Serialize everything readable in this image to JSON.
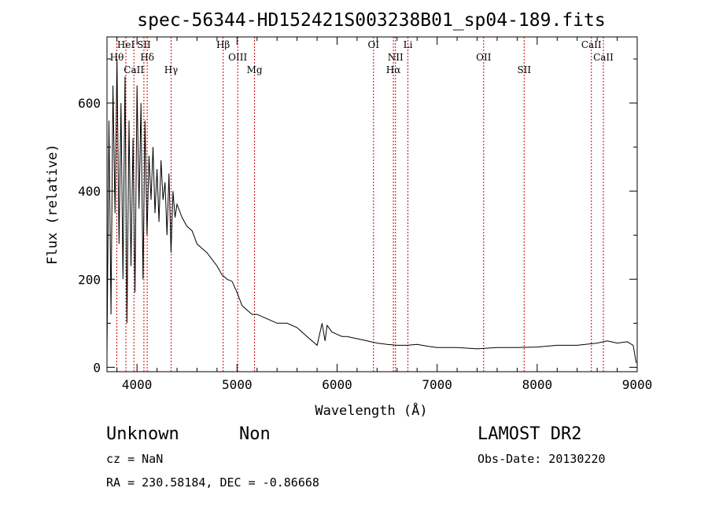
{
  "chart_data": {
    "type": "line",
    "title": "spec-56344-HD152421S003238B01_sp04-189.fits",
    "xlabel": "Wavelength (Å)",
    "ylabel": "Flux (relative)",
    "xlim": [
      3700,
      9000
    ],
    "ylim": [
      -10,
      750
    ],
    "x_ticks": [
      4000,
      5000,
      6000,
      7000,
      8000,
      9000
    ],
    "y_ticks": [
      0,
      200,
      400,
      600
    ],
    "grid": false,
    "series": [
      {
        "x": [
          3700,
          3720,
          3740,
          3760,
          3780,
          3800,
          3820,
          3840,
          3860,
          3880,
          3900,
          3920,
          3940,
          3960,
          3980,
          4000,
          4020,
          4040,
          4060,
          4080,
          4100,
          4120,
          4140,
          4160,
          4180,
          4200,
          4220,
          4240,
          4260,
          4280,
          4300,
          4320,
          4340,
          4360,
          4380,
          4400,
          4450,
          4500,
          4550,
          4600,
          4650,
          4700,
          4750,
          4800,
          4850,
          4900,
          4950,
          5000,
          5050,
          5100,
          5150,
          5200,
          5300,
          5400,
          5500,
          5600,
          5700,
          5800,
          5850,
          5880,
          5900,
          5950,
          6000,
          6050,
          6100,
          6200,
          6300,
          6400,
          6500,
          6600,
          6700,
          6800,
          6900,
          7000,
          7200,
          7400,
          7600,
          7800,
          8000,
          8200,
          8400,
          8600,
          8700,
          8800,
          8900,
          8960,
          8990
        ],
        "y": [
          30,
          560,
          120,
          640,
          350,
          700,
          280,
          600,
          200,
          660,
          100,
          560,
          230,
          520,
          170,
          640,
          360,
          600,
          200,
          560,
          300,
          480,
          380,
          500,
          350,
          450,
          330,
          470,
          380,
          420,
          300,
          440,
          260,
          400,
          340,
          370,
          340,
          320,
          310,
          280,
          270,
          260,
          245,
          230,
          210,
          200,
          195,
          170,
          140,
          130,
          120,
          120,
          110,
          100,
          100,
          90,
          70,
          50,
          100,
          60,
          95,
          80,
          75,
          70,
          70,
          65,
          60,
          55,
          52,
          50,
          50,
          52,
          48,
          45,
          45,
          42,
          45,
          45,
          46,
          50,
          50,
          55,
          60,
          55,
          58,
          50,
          10
        ]
      }
    ],
    "spectral_lines": [
      {
        "label": "HeI",
        "x": 3889
      },
      {
        "label": "Hθ",
        "x": 3798
      },
      {
        "label": "CaII",
        "x": 3969
      },
      {
        "label": "SII",
        "x": 4069
      },
      {
        "label": "Hδ",
        "x": 4102
      },
      {
        "label": "Hγ",
        "x": 4341
      },
      {
        "label": "Hβ",
        "x": 4861
      },
      {
        "label": "OIII",
        "x": 5007
      },
      {
        "label": "Mg",
        "x": 5175
      },
      {
        "label": "OI",
        "x": 6364
      },
      {
        "label": "NII",
        "x": 6584
      },
      {
        "label": "Hα",
        "x": 6563
      },
      {
        "label": "Li",
        "x": 6708
      },
      {
        "label": "OII",
        "x": 7465
      },
      {
        "label": "SII",
        "x": 7870
      },
      {
        "label": "CaII",
        "x": 8542
      },
      {
        "label": "CaII",
        "x": 8662
      }
    ],
    "line_color": "#000000",
    "marker_color": "#cc0000"
  },
  "info": {
    "class_label": "Unknown",
    "subclass_label": "Non",
    "survey": "LAMOST DR2",
    "cz": "cz = NaN",
    "obs_date": "Obs-Date: 20130220",
    "coords": "RA = 230.58184, DEC =  -0.86668"
  }
}
